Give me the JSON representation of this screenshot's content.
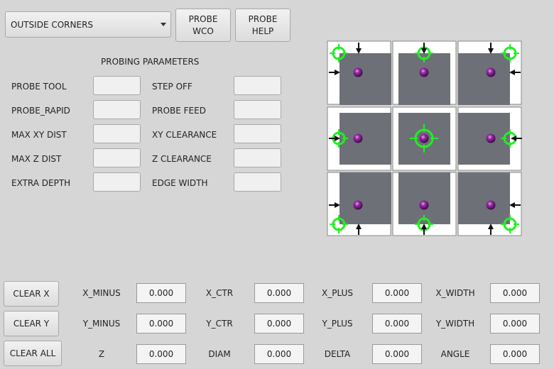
{
  "mode_select": {
    "value": "OUTSIDE CORNERS"
  },
  "buttons": {
    "probe_wco": "PROBE\nWCO",
    "probe_help": "PROBE\nHELP",
    "clear_x": "CLEAR X",
    "clear_y": "CLEAR Y",
    "clear_all": "CLEAR ALL"
  },
  "params": {
    "title": "PROBING PARAMETERS",
    "left": [
      {
        "label": "PROBE TOOL",
        "value": ""
      },
      {
        "label": "PROBE_RAPID",
        "value": ""
      },
      {
        "label": "MAX XY DIST",
        "value": ""
      },
      {
        "label": "MAX Z DIST",
        "value": ""
      },
      {
        "label": "EXTRA DEPTH",
        "value": ""
      }
    ],
    "right": [
      {
        "label": "STEP OFF",
        "value": ""
      },
      {
        "label": "PROBE FEED",
        "value": ""
      },
      {
        "label": "XY CLEARANCE",
        "value": ""
      },
      {
        "label": "Z CLEARANCE",
        "value": ""
      },
      {
        "label": "EDGE WIDTH",
        "value": ""
      }
    ]
  },
  "results": [
    [
      {
        "label": "X_MINUS",
        "value": "0.000"
      },
      {
        "label": "X_CTR",
        "value": "0.000"
      },
      {
        "label": "X_PLUS",
        "value": "0.000"
      },
      {
        "label": "X_WIDTH",
        "value": "0.000"
      }
    ],
    [
      {
        "label": "Y_MINUS",
        "value": "0.000"
      },
      {
        "label": "Y_CTR",
        "value": "0.000"
      },
      {
        "label": "Y_PLUS",
        "value": "0.000"
      },
      {
        "label": "Y_WIDTH",
        "value": "0.000"
      }
    ],
    [
      {
        "label": "Z",
        "value": "0.000"
      },
      {
        "label": "DIAM",
        "value": "0.000"
      },
      {
        "label": "DELTA",
        "value": "0.000"
      },
      {
        "label": "ANGLE",
        "value": "0.000"
      }
    ]
  ],
  "colors": {
    "target": "#22ee22",
    "stock": "#6e7078",
    "probe": "#7a1f86"
  }
}
